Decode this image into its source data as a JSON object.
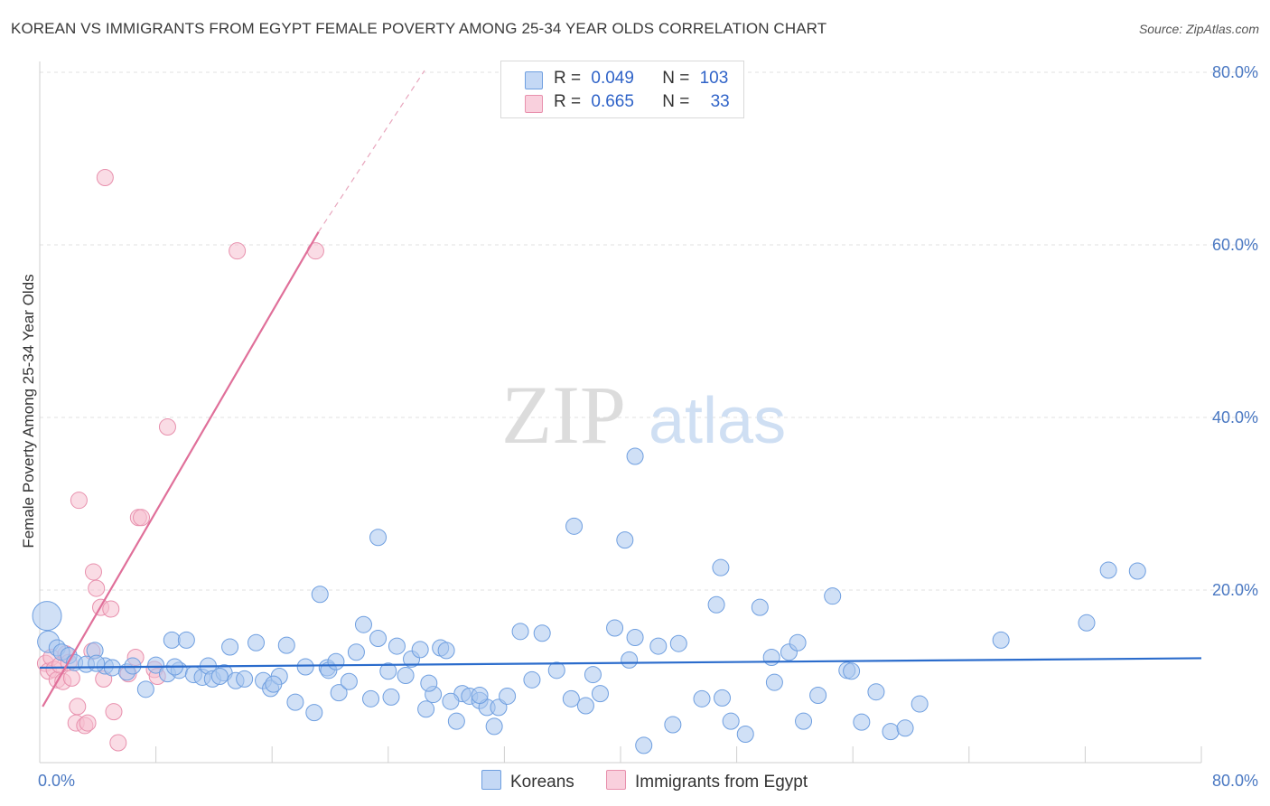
{
  "title": "KOREAN VS IMMIGRANTS FROM EGYPT FEMALE POVERTY AMONG 25-34 YEAR OLDS CORRELATION CHART",
  "source": "Source: ZipAtlas.com",
  "watermark": {
    "zip": "ZIP",
    "atlas": "atlas"
  },
  "colors": {
    "korean_fill": "#a9c6ef",
    "korean_stroke": "#6f9fe0",
    "korean_line": "#2b6ccc",
    "egypt_fill": "#f6bfd0",
    "egypt_stroke": "#e890ad",
    "egypt_line": "#e0709a",
    "grid": "#e0e0e0",
    "tick_text": "#4a78c2"
  },
  "legend": {
    "row1": {
      "r_label": "R =",
      "r_value": "0.049",
      "n_label": "N =",
      "n_value": "103"
    },
    "row2": {
      "r_label": "R =",
      "r_value": "0.665",
      "n_label": "N =",
      "n_value": "33"
    }
  },
  "chart_data": {
    "type": "scatter",
    "title": "KOREAN VS IMMIGRANTS FROM EGYPT FEMALE POVERTY AMONG 25-34 YEAR OLDS CORRELATION CHART",
    "xlabel": "",
    "ylabel": "Female Poverty Among 25-34 Year Olds",
    "xlim": [
      0,
      80
    ],
    "ylim": [
      0,
      82
    ],
    "x_tick_labels": [
      "0.0%",
      "80.0%"
    ],
    "y_ticks": [
      20,
      40,
      60,
      80
    ],
    "y_tick_labels": [
      "20.0%",
      "40.0%",
      "60.0%",
      "80.0%"
    ],
    "grid": true,
    "legend_placement": "top-center",
    "series": [
      {
        "name": "Koreans",
        "r": 0.049,
        "n": 103,
        "trend": {
          "x0": 0,
          "y0": 11.0,
          "x1": 80,
          "y1": 12.1
        },
        "points": [
          [
            0.5,
            17.0,
            16
          ],
          [
            0.6,
            14.0,
            12
          ],
          [
            1.2,
            13.3,
            9
          ],
          [
            1.5,
            12.8,
            9
          ],
          [
            2.0,
            12.4,
            9
          ],
          [
            2.4,
            11.6,
            9
          ],
          [
            3.2,
            11.4,
            9
          ],
          [
            3.8,
            13.0,
            9
          ],
          [
            4.5,
            11.2,
            9
          ],
          [
            5.0,
            11.0,
            9
          ],
          [
            6.0,
            10.5,
            9
          ],
          [
            6.4,
            11.2,
            9
          ],
          [
            7.3,
            8.5,
            9
          ],
          [
            8.0,
            11.3,
            9
          ],
          [
            8.8,
            10.3,
            9
          ],
          [
            9.1,
            14.2,
            9
          ],
          [
            9.6,
            10.7,
            9
          ],
          [
            10.1,
            14.2,
            9
          ],
          [
            10.6,
            10.2,
            9
          ],
          [
            11.2,
            9.9,
            9
          ],
          [
            11.6,
            11.2,
            9
          ],
          [
            11.9,
            9.7,
            9
          ],
          [
            12.7,
            10.4,
            9
          ],
          [
            13.1,
            13.4,
            9
          ],
          [
            13.5,
            9.5,
            9
          ],
          [
            14.1,
            9.7,
            9
          ],
          [
            14.9,
            13.9,
            9
          ],
          [
            15.4,
            9.5,
            9
          ],
          [
            15.9,
            8.6,
            9
          ],
          [
            16.5,
            10.0,
            9
          ],
          [
            17.0,
            13.6,
            9
          ],
          [
            17.6,
            7.0,
            9
          ],
          [
            18.3,
            11.1,
            9
          ],
          [
            18.9,
            5.8,
            9
          ],
          [
            19.3,
            19.5,
            9
          ],
          [
            19.8,
            11.0,
            9
          ],
          [
            20.6,
            8.1,
            9
          ],
          [
            21.3,
            9.4,
            9
          ],
          [
            21.8,
            12.8,
            9
          ],
          [
            22.3,
            16.0,
            9
          ],
          [
            22.8,
            7.4,
            9
          ],
          [
            23.3,
            14.4,
            9
          ],
          [
            24.0,
            10.6,
            9
          ],
          [
            24.6,
            13.5,
            9
          ],
          [
            25.2,
            10.1,
            9
          ],
          [
            25.6,
            12.0,
            9
          ],
          [
            26.2,
            13.1,
            9
          ],
          [
            26.6,
            6.2,
            9
          ],
          [
            27.1,
            7.9,
            9
          ],
          [
            27.6,
            13.3,
            9
          ],
          [
            28.0,
            13.0,
            9
          ],
          [
            28.7,
            4.8,
            9
          ],
          [
            29.1,
            8.0,
            9
          ],
          [
            29.6,
            7.7,
            9
          ],
          [
            30.3,
            7.2,
            9
          ],
          [
            30.8,
            6.4,
            9
          ],
          [
            31.3,
            4.2,
            9
          ],
          [
            31.6,
            6.4,
            9
          ],
          [
            32.2,
            7.7,
            9
          ],
          [
            33.1,
            15.2,
            9
          ],
          [
            34.6,
            15.0,
            9
          ],
          [
            35.6,
            10.7,
            9
          ],
          [
            36.6,
            7.4,
            9
          ],
          [
            37.6,
            6.6,
            9
          ],
          [
            38.6,
            8.0,
            9
          ],
          [
            39.6,
            15.6,
            9
          ],
          [
            40.6,
            11.9,
            9
          ],
          [
            41.6,
            2.0,
            9
          ],
          [
            42.6,
            13.5,
            9
          ],
          [
            43.6,
            4.4,
            9
          ],
          [
            45.6,
            7.4,
            9
          ],
          [
            46.6,
            18.3,
            9
          ],
          [
            47.6,
            4.8,
            9
          ],
          [
            48.6,
            3.3,
            9
          ],
          [
            49.6,
            18.0,
            9
          ],
          [
            50.6,
            9.3,
            9
          ],
          [
            51.6,
            12.8,
            9
          ],
          [
            52.6,
            4.8,
            9
          ],
          [
            53.6,
            7.8,
            9
          ],
          [
            54.6,
            19.3,
            9
          ],
          [
            55.6,
            10.7,
            9
          ],
          [
            56.6,
            4.7,
            9
          ],
          [
            57.6,
            8.2,
            9
          ],
          [
            58.6,
            3.6,
            9
          ],
          [
            59.6,
            4.0,
            9
          ],
          [
            60.6,
            6.8,
            9
          ],
          [
            66.2,
            14.2,
            9
          ],
          [
            72.1,
            16.2,
            9
          ],
          [
            73.6,
            22.3,
            9
          ],
          [
            75.6,
            22.2,
            9
          ],
          [
            12.4,
            10.0,
            9
          ],
          [
            16.1,
            9.1,
            9
          ],
          [
            19.9,
            10.7,
            9
          ],
          [
            24.2,
            7.6,
            9
          ],
          [
            28.3,
            7.1,
            9
          ],
          [
            33.9,
            9.6,
            9
          ],
          [
            38.1,
            10.2,
            9
          ],
          [
            41.0,
            14.5,
            9
          ],
          [
            44.0,
            13.8,
            9
          ],
          [
            47.0,
            7.5,
            9
          ],
          [
            23.3,
            26.1,
            9
          ],
          [
            36.8,
            27.4,
            9
          ],
          [
            40.3,
            25.8,
            9
          ],
          [
            46.9,
            22.6,
            9
          ],
          [
            41.0,
            35.5,
            9
          ],
          [
            55.9,
            10.6,
            9
          ],
          [
            50.4,
            12.2,
            9
          ],
          [
            52.2,
            13.9,
            9
          ],
          [
            9.3,
            11.1,
            9
          ],
          [
            3.9,
            11.5,
            9
          ],
          [
            30.3,
            7.8,
            9
          ],
          [
            26.8,
            9.2,
            9
          ],
          [
            20.4,
            11.7,
            9
          ]
        ]
      },
      {
        "name": "Immigrants from Egypt",
        "r": 0.665,
        "n": 33,
        "trend": {
          "x0": 0.2,
          "y0": 6.5,
          "x1": 19.2,
          "y1": 61.5
        },
        "trend_dashed": {
          "x0": 19.2,
          "y0": 61.5,
          "x1": 26.5,
          "y1": 80.2
        },
        "points": [
          [
            0.4,
            11.5,
            9
          ],
          [
            0.6,
            10.6,
            9
          ],
          [
            0.8,
            12.2,
            9
          ],
          [
            1.0,
            10.8,
            9
          ],
          [
            1.2,
            9.6,
            9
          ],
          [
            1.4,
            11.3,
            9
          ],
          [
            1.6,
            9.4,
            9
          ],
          [
            1.8,
            12.6,
            9
          ],
          [
            2.0,
            11.6,
            9
          ],
          [
            2.2,
            9.8,
            9
          ],
          [
            2.5,
            4.6,
            9
          ],
          [
            2.6,
            6.5,
            9
          ],
          [
            2.7,
            30.4,
            9
          ],
          [
            3.1,
            4.3,
            9
          ],
          [
            3.3,
            4.6,
            9
          ],
          [
            3.6,
            12.9,
            9
          ],
          [
            3.7,
            22.1,
            9
          ],
          [
            3.9,
            20.2,
            9
          ],
          [
            4.2,
            18.0,
            9
          ],
          [
            4.4,
            9.7,
            9
          ],
          [
            4.5,
            67.8,
            9
          ],
          [
            4.9,
            17.8,
            9
          ],
          [
            5.1,
            5.9,
            9
          ],
          [
            5.4,
            2.3,
            9
          ],
          [
            6.1,
            10.3,
            9
          ],
          [
            6.6,
            12.2,
            9
          ],
          [
            6.8,
            28.4,
            9
          ],
          [
            7.0,
            28.4,
            9
          ],
          [
            7.9,
            10.8,
            9
          ],
          [
            8.8,
            38.9,
            9
          ],
          [
            13.6,
            59.3,
            9
          ],
          [
            19.0,
            59.3,
            9
          ],
          [
            8.1,
            10.0,
            9
          ]
        ]
      }
    ]
  },
  "bottom_legend": {
    "koreans": "Koreans",
    "egypt": "Immigrants from Egypt"
  }
}
